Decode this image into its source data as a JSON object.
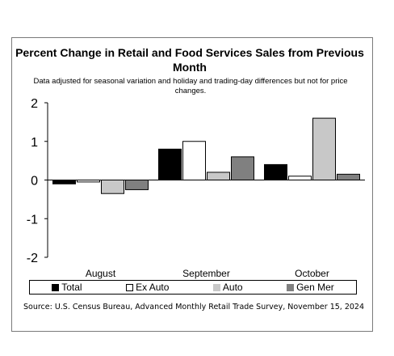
{
  "chart_data": {
    "type": "bar",
    "title": "Percent Change in Retail and Food Services Sales from Previous Month",
    "subtitle": "Data adjusted for seasonal variation and holiday and trading-day differences but not for price changes.",
    "categories": [
      "August",
      "September",
      "October"
    ],
    "series": [
      {
        "name": "Total",
        "values": [
          -0.1,
          0.8,
          0.4
        ],
        "color": "#000000"
      },
      {
        "name": "Ex Auto",
        "values": [
          -0.05,
          1.0,
          0.1
        ],
        "color": "#ffffff"
      },
      {
        "name": "Auto",
        "values": [
          -0.35,
          0.2,
          1.6
        ],
        "color": "#c8c8c8"
      },
      {
        "name": "Gen Mer",
        "values": [
          -0.25,
          0.6,
          0.15
        ],
        "color": "#808080"
      }
    ],
    "ylim": [
      -2,
      2
    ],
    "yticks": [
      2,
      1,
      0,
      -1,
      -2
    ],
    "grid": false,
    "legend_position": "bottom"
  },
  "source": "Source: U.S. Census Bureau, Advanced Monthly Retail Trade Survey, November 15, 2024"
}
